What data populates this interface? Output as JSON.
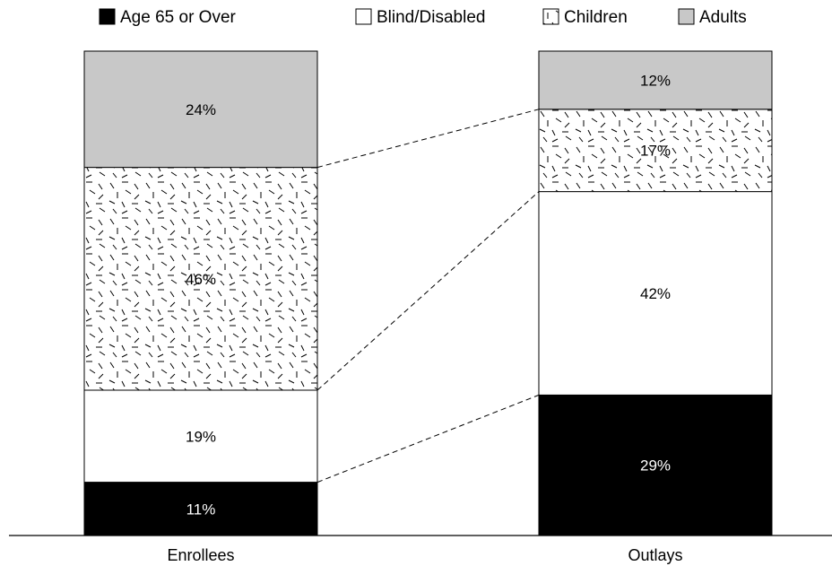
{
  "chart_data": {
    "type": "bar",
    "stacked": true,
    "categories": [
      "Enrollees",
      "Outlays"
    ],
    "series": [
      {
        "name": "Age 65 or Over",
        "values": [
          11,
          29
        ],
        "labels": [
          "11%",
          "29%"
        ],
        "fill": "#000000",
        "label_color": "#ffffff",
        "pattern": "solid"
      },
      {
        "name": "Blind/Disabled",
        "values": [
          19,
          42
        ],
        "labels": [
          "19%",
          "42%"
        ],
        "fill": "#ffffff",
        "label_color": "#000000",
        "pattern": "solid"
      },
      {
        "name": "Children",
        "values": [
          46,
          17
        ],
        "labels": [
          "46%",
          "17%"
        ],
        "fill": "#ffffff",
        "label_color": "#000000",
        "pattern": "dashes"
      },
      {
        "name": "Adults",
        "values": [
          24,
          12
        ],
        "labels": [
          "24%",
          "12%"
        ],
        "fill": "#c8c8c8",
        "label_color": "#000000",
        "pattern": "solid"
      }
    ],
    "ylim": [
      0,
      100
    ],
    "legend_position": "top",
    "connectors": "dashed lines join matching segment boundaries between the two bars",
    "grid": false
  }
}
